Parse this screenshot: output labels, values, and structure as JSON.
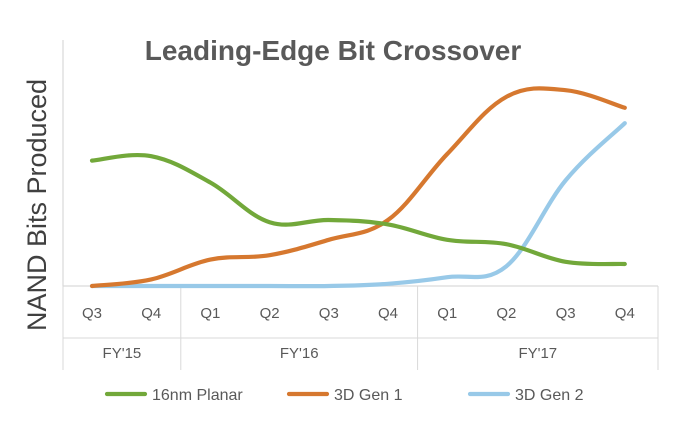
{
  "chart_data": {
    "type": "line",
    "title": "Leading-Edge Bit Crossover",
    "ylabel": "NAND Bits Produced",
    "xlabel": "",
    "categories": [
      "Q3",
      "Q4",
      "Q1",
      "Q2",
      "Q3",
      "Q4",
      "Q1",
      "Q2",
      "Q3",
      "Q4"
    ],
    "groups": [
      {
        "label": "FY'15",
        "count": 2
      },
      {
        "label": "FY'16",
        "count": 4
      },
      {
        "label": "FY'17",
        "count": 4
      }
    ],
    "ylim": [
      0,
      100
    ],
    "grid": false,
    "legend_position": "bottom",
    "series": [
      {
        "name": "16nm Planar",
        "color": "#72a83a",
        "values": [
          57,
          59,
          47,
          29,
          30,
          28,
          21,
          19,
          11,
          10
        ]
      },
      {
        "name": "3D Gen 1",
        "color": "#d6782f",
        "values": [
          0,
          3,
          12,
          14,
          21,
          30,
          60,
          86,
          89,
          81
        ]
      },
      {
        "name": "3D Gen 2",
        "color": "#98c9e8",
        "values": [
          0,
          0,
          0,
          0,
          0,
          1,
          4,
          9,
          48,
          74
        ]
      }
    ]
  }
}
